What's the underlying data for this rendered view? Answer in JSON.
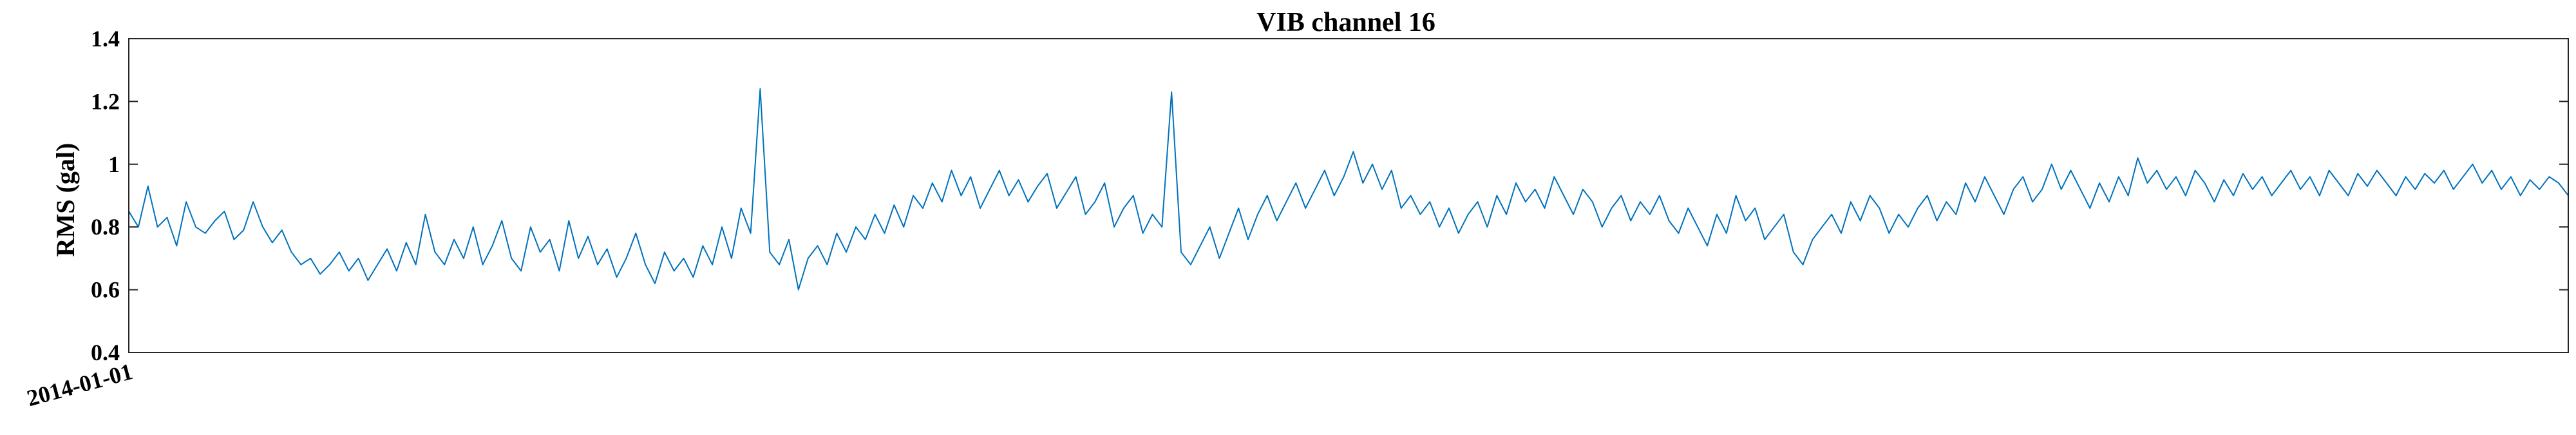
{
  "chart_data": {
    "type": "line",
    "title": "VIB channel 16",
    "ylabel": "RMS (gal)",
    "xlabel": "",
    "ylim": [
      0.4,
      1.4
    ],
    "yticks": [
      0.4,
      0.6,
      0.8,
      1.0,
      1.2,
      1.4
    ],
    "ytick_labels": [
      "0.4",
      "0.6",
      "0.8",
      "1",
      "1.2",
      "1.4"
    ],
    "xtick_labels": [
      "2014-01-01"
    ],
    "grid": false,
    "color": "#0072BD",
    "series": [
      {
        "values": [
          0.85,
          0.8,
          0.93,
          0.8,
          0.83,
          0.74,
          0.88,
          0.8,
          0.78,
          0.82,
          0.85,
          0.76,
          0.79,
          0.88,
          0.8,
          0.75,
          0.79,
          0.72,
          0.68,
          0.7,
          0.65,
          0.68,
          0.72,
          0.66,
          0.7,
          0.63,
          0.68,
          0.73,
          0.66,
          0.75,
          0.68,
          0.84,
          0.72,
          0.68,
          0.76,
          0.7,
          0.8,
          0.68,
          0.74,
          0.82,
          0.7,
          0.66,
          0.8,
          0.72,
          0.76,
          0.66,
          0.82,
          0.7,
          0.77,
          0.68,
          0.73,
          0.64,
          0.7,
          0.78,
          0.68,
          0.62,
          0.72,
          0.66,
          0.7,
          0.64,
          0.74,
          0.68,
          0.8,
          0.7,
          0.86,
          0.78,
          1.24,
          0.72,
          0.68,
          0.76,
          0.6,
          0.7,
          0.74,
          0.68,
          0.78,
          0.72,
          0.8,
          0.76,
          0.84,
          0.78,
          0.87,
          0.8,
          0.9,
          0.86,
          0.94,
          0.88,
          0.98,
          0.9,
          0.96,
          0.86,
          0.92,
          0.98,
          0.9,
          0.95,
          0.88,
          0.93,
          0.97,
          0.86,
          0.91,
          0.96,
          0.84,
          0.88,
          0.94,
          0.8,
          0.86,
          0.9,
          0.78,
          0.84,
          0.8,
          1.23,
          0.72,
          0.68,
          0.74,
          0.8,
          0.7,
          0.78,
          0.86,
          0.76,
          0.84,
          0.9,
          0.82,
          0.88,
          0.94,
          0.86,
          0.92,
          0.98,
          0.9,
          0.96,
          1.04,
          0.94,
          1.0,
          0.92,
          0.98,
          0.86,
          0.9,
          0.84,
          0.88,
          0.8,
          0.86,
          0.78,
          0.84,
          0.88,
          0.8,
          0.9,
          0.84,
          0.94,
          0.88,
          0.92,
          0.86,
          0.96,
          0.9,
          0.84,
          0.92,
          0.88,
          0.8,
          0.86,
          0.9,
          0.82,
          0.88,
          0.84,
          0.9,
          0.82,
          0.78,
          0.86,
          0.8,
          0.74,
          0.84,
          0.78,
          0.9,
          0.82,
          0.86,
          0.76,
          0.8,
          0.84,
          0.72,
          0.68,
          0.76,
          0.8,
          0.84,
          0.78,
          0.88,
          0.82,
          0.9,
          0.86,
          0.78,
          0.84,
          0.8,
          0.86,
          0.9,
          0.82,
          0.88,
          0.84,
          0.94,
          0.88,
          0.96,
          0.9,
          0.84,
          0.92,
          0.96,
          0.88,
          0.92,
          1.0,
          0.92,
          0.98,
          0.92,
          0.86,
          0.94,
          0.88,
          0.96,
          0.9,
          1.02,
          0.94,
          0.98,
          0.92,
          0.96,
          0.9,
          0.98,
          0.94,
          0.88,
          0.95,
          0.9,
          0.97,
          0.92,
          0.96,
          0.9,
          0.94,
          0.98,
          0.92,
          0.96,
          0.9,
          0.98,
          0.94,
          0.9,
          0.97,
          0.93,
          0.98,
          0.94,
          0.9,
          0.96,
          0.92,
          0.97,
          0.94,
          0.98,
          0.92,
          0.96,
          1.0,
          0.94,
          0.98,
          0.92,
          0.96,
          0.9,
          0.95,
          0.92,
          0.96,
          0.94,
          0.9
        ]
      }
    ]
  }
}
